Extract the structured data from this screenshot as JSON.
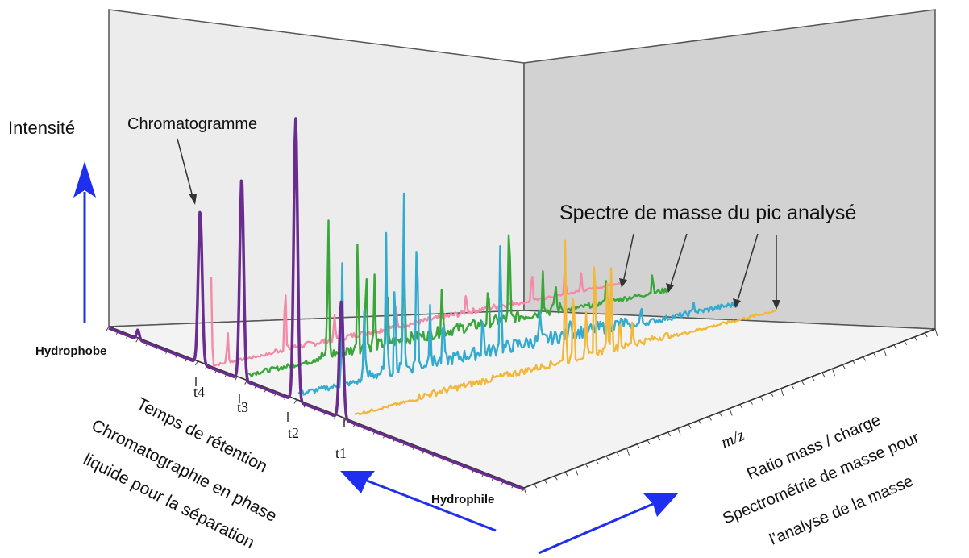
{
  "colors": {
    "chromatogram": "#6a2c8f",
    "spectrum_pink": "#f48aa8",
    "spectrum_green": "#3aa63a",
    "spectrum_blue": "#33aad0",
    "spectrum_yellow": "#f2b83a",
    "arrow_blue": "#1f2ff0",
    "wall_back": "#ececec",
    "wall_right": "#d4d4d4",
    "floor": "#f2f2f2"
  },
  "labels": {
    "intensity": "Intensité",
    "chromatogram": "Chromatogramme",
    "spectrum_title": "Spectre de masse du pic analysé",
    "hydrophobe": "Hydrophobe",
    "hydrophile": "Hydrophile",
    "retention_time": "Temps de rétention",
    "lc_line1": "Chromatographie en phase",
    "lc_line2": "liquide pour la séparation",
    "mz": "m/z",
    "ratio": "Ratio mass / charge",
    "ms_line1": "Spectrométrie de masse pour",
    "ms_line2": "l’analyse de la masse"
  },
  "ticks": [
    "t4",
    "t3",
    "t2",
    "t1"
  ]
}
